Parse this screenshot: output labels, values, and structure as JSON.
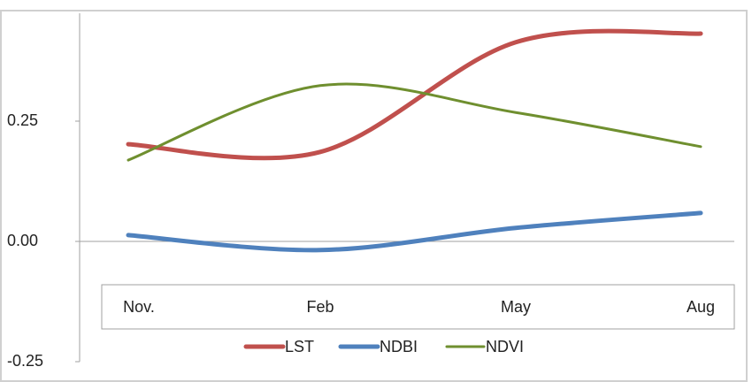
{
  "chart_data": {
    "type": "line",
    "categories": [
      "Nov.",
      "Feb",
      "May",
      "Aug"
    ],
    "series": [
      {
        "name": "LST",
        "color": "#c0504d",
        "values": [
          0.202,
          0.186,
          0.414,
          0.432
        ]
      },
      {
        "name": "NDBI",
        "color": "#4f81bd",
        "values": [
          0.013,
          -0.018,
          0.028,
          0.059
        ]
      },
      {
        "name": "NDVI",
        "color": "#6f8f2f",
        "values": [
          0.169,
          0.324,
          0.268,
          0.197
        ]
      }
    ],
    "ylim": [
      -0.25,
      0.5
    ],
    "yticks": [
      0.25,
      {
        "value": 0,
        "label": "0.00"
      },
      -0.25
    ],
    "legend": "bottom"
  }
}
